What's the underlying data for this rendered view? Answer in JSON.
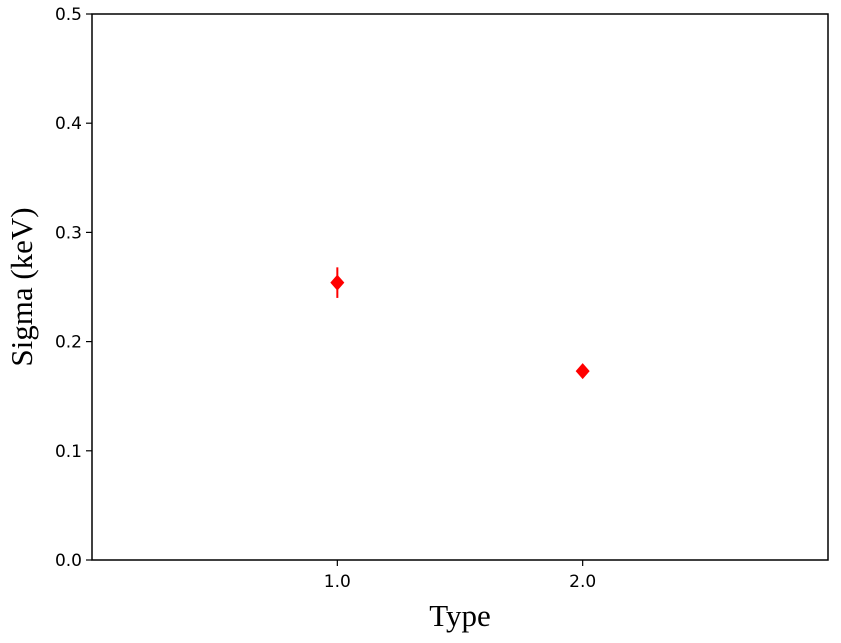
{
  "chart_data": {
    "type": "scatter",
    "xlabel": "Type",
    "ylabel": "Sigma (keV)",
    "x": [
      1,
      2
    ],
    "values": [
      0.254,
      0.173
    ],
    "errors": [
      0.014,
      0.004
    ],
    "color": "#ff0000",
    "xlim": [
      0,
      3
    ],
    "xticks": [
      {
        "value": 1,
        "label": "1.0"
      },
      {
        "value": 2,
        "label": "2.0"
      }
    ],
    "ylim": [
      0,
      0.5
    ],
    "yticks": [
      {
        "value": 0,
        "label": "0.0"
      },
      {
        "value": 0.1,
        "label": "0.1"
      },
      {
        "value": 0.2,
        "label": "0.2"
      },
      {
        "value": 0.3,
        "label": "0.3"
      },
      {
        "value": 0.4,
        "label": "0.4"
      },
      {
        "value": 0.5,
        "label": "0.5"
      }
    ]
  }
}
